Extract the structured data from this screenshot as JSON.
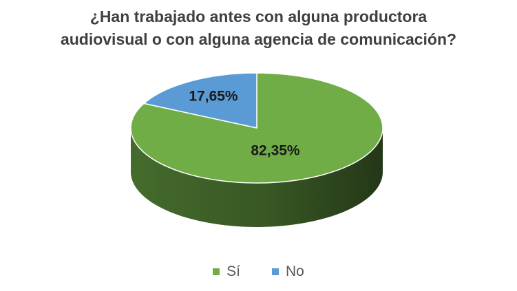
{
  "chart_data": {
    "type": "pie",
    "title_lines": [
      "¿Han trabajado antes con alguna productora",
      "audiovisual o con alguna agencia de comunicación?"
    ],
    "slices": [
      {
        "label": "Sí",
        "value": 82.35,
        "display": "82,35%",
        "color": "#70ad47"
      },
      {
        "label": "No",
        "value": 17.65,
        "display": "17,65%",
        "color": "#5b9bd5"
      }
    ],
    "style": "3d",
    "legend_position": "bottom"
  }
}
